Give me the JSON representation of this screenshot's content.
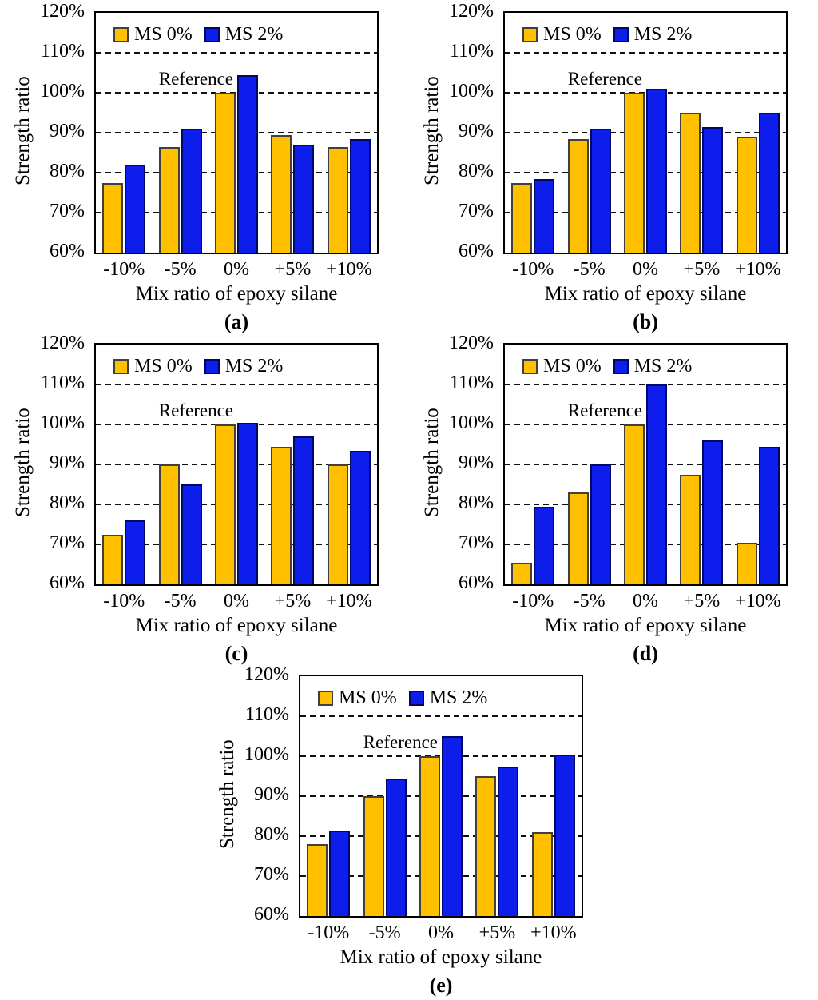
{
  "page": {
    "background": "#ffffff"
  },
  "colors": {
    "ms0_fill": "#FFC000",
    "ms0_border": "#404040",
    "ms2_fill": "#0D1EEC",
    "ms2_border": "#000866",
    "grid_line": "#111111",
    "axis_border": "#000000",
    "text": "#000000"
  },
  "chart_data": [
    {
      "type": "bar",
      "caption": "(a)",
      "ylabel": "Strength ratio",
      "xlabel": "Mix ratio of epoxy silane",
      "annotation": "Reference",
      "categories": [
        "-10%",
        "-5%",
        "0%",
        "+5%",
        "+10%"
      ],
      "series": [
        {
          "name": "MS 0%",
          "key": "ms0",
          "values": [
            77.5,
            86.5,
            100,
            89.5,
            86.5
          ]
        },
        {
          "name": "MS 2%",
          "key": "ms2",
          "values": [
            82,
            91,
            104.5,
            87,
            88.5
          ]
        }
      ],
      "ylim": [
        60,
        120
      ],
      "ytick_step": 10,
      "y_tick_labels": [
        "120%",
        "110%",
        "100%",
        "90%",
        "80%",
        "70%",
        "60%"
      ],
      "grid": "dashed-horizontal",
      "legend_position": "top-left-inside"
    },
    {
      "type": "bar",
      "caption": "(b)",
      "ylabel": "Strength ratio",
      "xlabel": "Mix ratio of epoxy silane",
      "annotation": "Reference",
      "categories": [
        "-10%",
        "-5%",
        "0%",
        "+5%",
        "+10%"
      ],
      "series": [
        {
          "name": "MS 0%",
          "key": "ms0",
          "values": [
            77.5,
            88.5,
            100,
            95,
            89
          ]
        },
        {
          "name": "MS 2%",
          "key": "ms2",
          "values": [
            78.5,
            91,
            101,
            91.5,
            95
          ]
        }
      ],
      "ylim": [
        60,
        120
      ],
      "ytick_step": 10,
      "y_tick_labels": [
        "120%",
        "110%",
        "100%",
        "90%",
        "80%",
        "70%",
        "60%"
      ],
      "grid": "dashed-horizontal",
      "legend_position": "top-left-inside"
    },
    {
      "type": "bar",
      "caption": "(c)",
      "ylabel": "Strength ratio",
      "xlabel": "Mix ratio of epoxy silane",
      "annotation": "Reference",
      "categories": [
        "-10%",
        "-5%",
        "0%",
        "+5%",
        "+10%"
      ],
      "series": [
        {
          "name": "MS 0%",
          "key": "ms0",
          "values": [
            72.5,
            90,
            100,
            94.5,
            90
          ]
        },
        {
          "name": "MS 2%",
          "key": "ms2",
          "values": [
            76,
            85,
            100.5,
            97,
            93.5
          ]
        }
      ],
      "ylim": [
        60,
        120
      ],
      "ytick_step": 10,
      "y_tick_labels": [
        "120%",
        "110%",
        "100%",
        "90%",
        "80%",
        "70%",
        "60%"
      ],
      "grid": "dashed-horizontal",
      "legend_position": "top-left-inside"
    },
    {
      "type": "bar",
      "caption": "(d)",
      "ylabel": "Strength ratio",
      "xlabel": "Mix ratio of epoxy silane",
      "annotation": "Reference",
      "categories": [
        "-10%",
        "-5%",
        "0%",
        "+5%",
        "+10%"
      ],
      "series": [
        {
          "name": "MS 0%",
          "key": "ms0",
          "values": [
            65.5,
            83,
            100,
            87.5,
            70.5
          ]
        },
        {
          "name": "MS 2%",
          "key": "ms2",
          "values": [
            79.5,
            90,
            110,
            96,
            94.5
          ]
        }
      ],
      "ylim": [
        60,
        120
      ],
      "ytick_step": 10,
      "y_tick_labels": [
        "120%",
        "110%",
        "100%",
        "90%",
        "80%",
        "70%",
        "60%"
      ],
      "grid": "dashed-horizontal",
      "legend_position": "top-left-inside"
    },
    {
      "type": "bar",
      "caption": "(e)",
      "ylabel": "Strength ratio",
      "xlabel": "Mix ratio of epoxy silane",
      "annotation": "Reference",
      "categories": [
        "-10%",
        "-5%",
        "0%",
        "+5%",
        "+10%"
      ],
      "series": [
        {
          "name": "MS 0%",
          "key": "ms0",
          "values": [
            78,
            90,
            100,
            95,
            81
          ]
        },
        {
          "name": "MS 2%",
          "key": "ms2",
          "values": [
            81.5,
            94.5,
            105,
            97.5,
            100.5
          ]
        }
      ],
      "ylim": [
        60,
        120
      ],
      "ytick_step": 10,
      "y_tick_labels": [
        "120%",
        "110%",
        "100%",
        "90%",
        "80%",
        "70%",
        "60%"
      ],
      "grid": "dashed-horizontal",
      "legend_position": "top-left-inside"
    }
  ]
}
